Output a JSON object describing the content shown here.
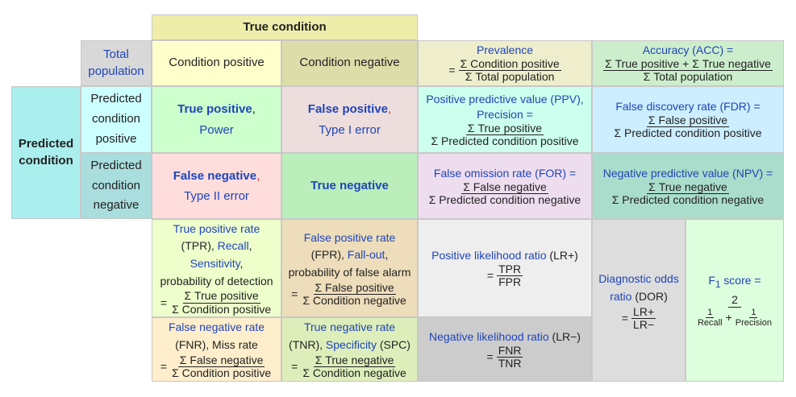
{
  "header": {
    "true_condition": "True condition",
    "total_population": "Total population",
    "condition_positive": "Condition positive",
    "condition_negative": "Condition negative",
    "predicted_condition": "Predicted condition",
    "predicted_condition_positive": "Predicted condition positive",
    "predicted_condition_negative": "Predicted condition negative"
  },
  "cells": {
    "true_positive": "True positive",
    "power": "Power",
    "false_positive": "False positive",
    "type1": "Type I error",
    "false_negative": "False negative",
    "type2": "Type II error",
    "true_negative": "True negative",
    "comma": ","
  },
  "prevalence": {
    "label": "Prevalence",
    "num": "Σ Condition positive",
    "den": "Σ Total population"
  },
  "accuracy": {
    "label": "Accuracy (ACC) =",
    "num": "Σ True positive + Σ True negative",
    "den": "Σ Total population"
  },
  "ppv": {
    "label": "Positive predictive value (PPV),",
    "label2": "Precision =",
    "num": "Σ True positive",
    "den": "Σ Predicted condition positive"
  },
  "fdr": {
    "label": "False discovery rate (FDR) =",
    "num": "Σ False positive",
    "den": "Σ Predicted condition positive"
  },
  "for": {
    "label": "False omission rate (FOR) =",
    "num": "Σ False negative",
    "den": "Σ Predicted condition negative"
  },
  "npv": {
    "label": "Negative predictive value (NPV) =",
    "num": "Σ True negative",
    "den": "Σ Predicted condition negative"
  },
  "tpr": {
    "l1": "True positive rate",
    "l2a": "(TPR), ",
    "l2b": "Recall",
    "l2c": ",",
    "l3": "Sensitivity",
    "l3c": ",",
    "l4": "probability of detection",
    "num": "Σ True positive",
    "den": "Σ Condition positive"
  },
  "fpr": {
    "l1": "False positive rate",
    "l2a": "(FPR), ",
    "l2b": "Fall-out",
    "l2c": ",",
    "l3": "probability of false alarm",
    "num": "Σ False positive",
    "den": "Σ Condition negative"
  },
  "fnr": {
    "l1": "False negative rate",
    "l2": "(FNR), Miss rate",
    "num": "Σ False negative",
    "den": "Σ Condition positive"
  },
  "tnr": {
    "l1": "True negative rate",
    "l2a": "(TNR), ",
    "l2b": "Specificity",
    "l2c": " (SPC)",
    "num": "Σ True negative",
    "den": "Σ Condition negative"
  },
  "lrp": {
    "label": "Positive likelihood ratio",
    "suffix": " (LR+)",
    "num": "TPR",
    "den": "FPR"
  },
  "lrn": {
    "label": "Negative likelihood ratio",
    "suffix": " (LR−)",
    "num": "FNR",
    "den": "TNR"
  },
  "dor": {
    "l1": "Diagnostic odds",
    "l2": "ratio",
    "l2s": " (DOR)",
    "num": "LR+",
    "den": "LR−"
  },
  "f1": {
    "label": "F",
    "sub": "1",
    "label2": " score =",
    "num": "2",
    "r_num": "1",
    "r_den": "Recall",
    "p_num": "1",
    "p_den": "Precision",
    "plus": "+"
  },
  "eq": "=",
  "colors": {
    "true_condition": "#eeeeaa",
    "total_population": "#d8d8d8",
    "condition_positive": "#ffffcc",
    "condition_negative": "#ddddaa",
    "predicted_condition": "#aaeeee",
    "pred_pos": "#ccffff",
    "pred_neg": "#aadddd",
    "true_positive": "#ccffcc",
    "false_positive": "#eedddd",
    "false_negative": "#ffdddd",
    "true_negative": "#bbeebb",
    "prevalence": "#eeeecc",
    "accuracy": "#cceecc",
    "ppv": "#ccffee",
    "fdr": "#cceeff",
    "for": "#eeddee",
    "npv": "#aaddcc",
    "tpr": "#eeffcc",
    "fpr": "#eeddbb",
    "fnr": "#ffeecc",
    "tnr": "#ddeebb",
    "lrp": "#eeeeee",
    "lrn": "#cccccc",
    "dor": "#dddddd",
    "f1": "#ddffdd"
  }
}
